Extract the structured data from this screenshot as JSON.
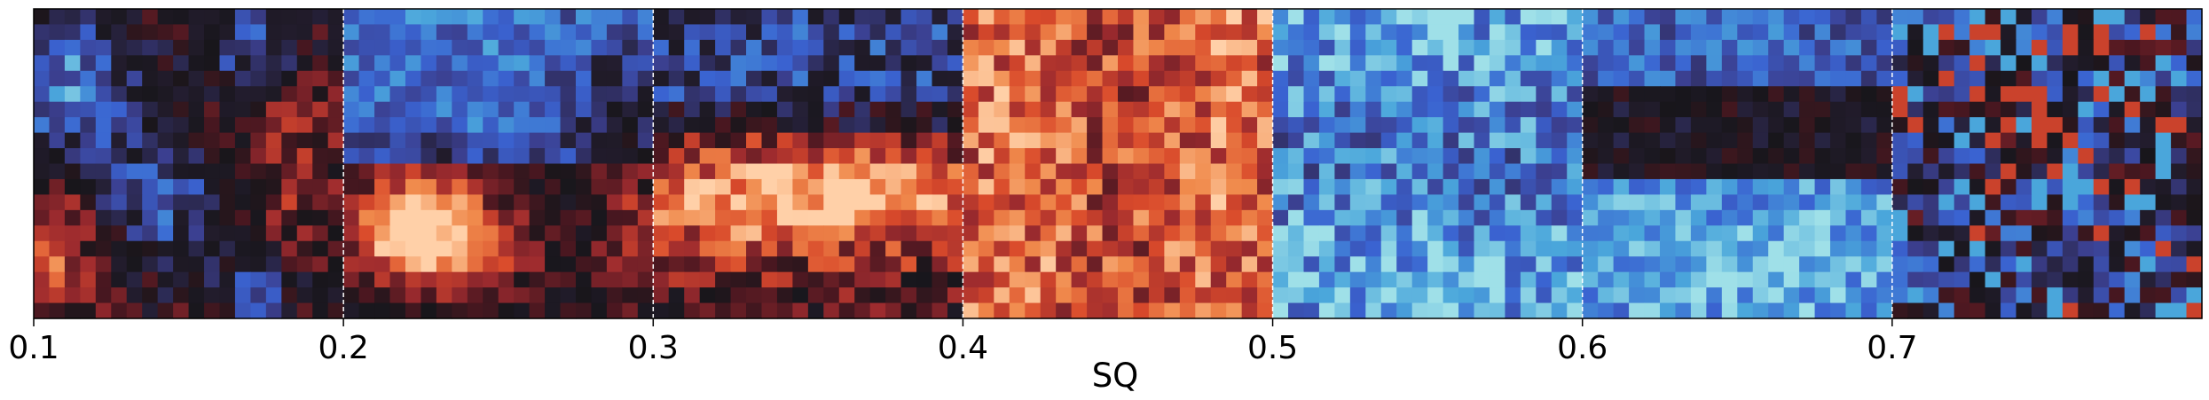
{
  "chart_data": {
    "type": "heatmap",
    "title": "",
    "xlabel": "SQ",
    "ylabel": "",
    "xlim": [
      0.1,
      0.8
    ],
    "x_ticks": [
      0.1,
      0.2,
      0.3,
      0.4,
      0.5,
      0.6,
      0.7
    ],
    "x_tick_labels": [
      "0.1",
      "0.2",
      "0.3",
      "0.4",
      "0.5",
      "0.6",
      "0.7"
    ],
    "grid": false,
    "legend": "none",
    "colormap": "diverging blue-dark-red (icefire)",
    "colormap_stops": [
      "#9fe0e8",
      "#4aa6db",
      "#3a63d1",
      "#3b3f8f",
      "#221c2c",
      "#18161b",
      "#4a1720",
      "#9b2a2e",
      "#d94a2b",
      "#f08a4c",
      "#ffd0a8"
    ],
    "value_range": [
      -1,
      1
    ],
    "grid_rows": 20,
    "grid_cols_per_panel": 20,
    "panels": [
      {
        "x_start": 0.1,
        "x_end": 0.2,
        "pattern": "blue upper-left and lower-middle, dark center, red lower-left"
      },
      {
        "x_start": 0.2,
        "x_end": 0.3,
        "pattern": "blue upper half, bright orange blob lower-left, red right edge"
      },
      {
        "x_start": 0.3,
        "x_end": 0.4,
        "pattern": "dark top, orange-red band lower half"
      },
      {
        "x_start": 0.4,
        "x_end": 0.5,
        "pattern": "mostly red-orange throughout"
      },
      {
        "x_start": 0.5,
        "x_end": 0.6,
        "pattern": "mostly light-to-medium blue throughout"
      },
      {
        "x_start": 0.6,
        "x_end": 0.7,
        "pattern": "blue top, dark middle band, light blue bottom"
      },
      {
        "x_start": 0.7,
        "x_end": 0.8,
        "pattern": "noisy dark with scattered blue and some red"
      }
    ]
  }
}
